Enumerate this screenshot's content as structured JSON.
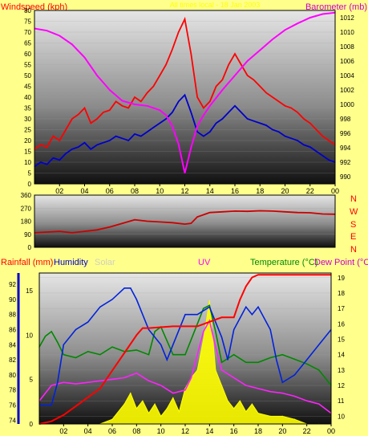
{
  "chart_data": [
    {
      "type": "line",
      "title": "",
      "ylabel_left": "Windspeed (kph)",
      "ylabel_right": "Barometer (mb)",
      "header_text": "All times local - 18 Jan 2003",
      "x_ticks": [
        "02",
        "04",
        "06",
        "08",
        "10",
        "12",
        "14",
        "16",
        "18",
        "20",
        "22",
        "00"
      ],
      "y_left_ticks": [
        0,
        5,
        10,
        15,
        20,
        25,
        30,
        35,
        40,
        45,
        50,
        55,
        60,
        65,
        70,
        75,
        80
      ],
      "y_right_ticks": [
        990,
        992,
        994,
        996,
        998,
        1000,
        1002,
        1004,
        1006,
        1008,
        1010,
        1012
      ],
      "ylim_left": [
        0,
        80
      ],
      "ylim_right": [
        989,
        1013
      ],
      "xlim": [
        0,
        24
      ],
      "series": [
        {
          "name": "Wind Gust",
          "axis": "left",
          "color": "#ff0000",
          "x": [
            0,
            0.5,
            1,
            1.5,
            2,
            2.5,
            3,
            3.5,
            4,
            4.5,
            5,
            5.5,
            6,
            6.5,
            7,
            7.5,
            8,
            8.5,
            9,
            9.5,
            10,
            10.5,
            11,
            11.5,
            12,
            12.5,
            13,
            13.5,
            14,
            14.5,
            15,
            15.5,
            16,
            16.5,
            17,
            17.5,
            18,
            18.5,
            19,
            19.5,
            20,
            20.5,
            21,
            21.5,
            22,
            22.5,
            23,
            23.5,
            24
          ],
          "y": [
            16,
            18,
            17,
            22,
            20,
            25,
            30,
            32,
            35,
            28,
            30,
            33,
            34,
            38,
            36,
            35,
            40,
            38,
            42,
            45,
            50,
            55,
            62,
            70,
            76,
            60,
            40,
            35,
            38,
            45,
            48,
            55,
            60,
            55,
            50,
            48,
            45,
            42,
            40,
            38,
            36,
            35,
            33,
            30,
            28,
            25,
            22,
            20,
            18
          ]
        },
        {
          "name": "Wind Speed",
          "axis": "left",
          "color": "#0000cc",
          "x": [
            0,
            0.5,
            1,
            1.5,
            2,
            2.5,
            3,
            3.5,
            4,
            4.5,
            5,
            5.5,
            6,
            6.5,
            7,
            7.5,
            8,
            8.5,
            9,
            9.5,
            10,
            10.5,
            11,
            11.5,
            12,
            12.5,
            13,
            13.5,
            14,
            14.5,
            15,
            15.5,
            16,
            16.5,
            17,
            17.5,
            18,
            18.5,
            19,
            19.5,
            20,
            20.5,
            21,
            21.5,
            22,
            22.5,
            23,
            23.5,
            24
          ],
          "y": [
            8,
            10,
            9,
            12,
            11,
            14,
            16,
            17,
            19,
            16,
            18,
            19,
            20,
            22,
            21,
            20,
            23,
            22,
            24,
            26,
            28,
            30,
            33,
            38,
            41,
            33,
            24,
            22,
            24,
            28,
            30,
            33,
            36,
            33,
            30,
            29,
            28,
            27,
            25,
            24,
            22,
            21,
            20,
            18,
            17,
            15,
            13,
            11,
            10
          ]
        },
        {
          "name": "Barometer",
          "axis": "right",
          "color": "#ff00ff",
          "x": [
            0,
            1,
            2,
            3,
            4,
            5,
            6,
            7,
            8,
            9,
            10,
            10.5,
            11,
            11.5,
            12,
            12.5,
            13,
            13.5,
            14,
            15,
            16,
            17,
            18,
            19,
            20,
            21,
            22,
            23,
            24
          ],
          "y": [
            1010.5,
            1010.2,
            1009.5,
            1008.3,
            1006.5,
            1004,
            1002,
            1000.5,
            1000,
            999.8,
            999.2,
            998.5,
            997,
            994.5,
            990.5,
            994,
            997,
            998.5,
            999.8,
            1002,
            1004,
            1006,
            1007.5,
            1009,
            1010.3,
            1011.2,
            1012,
            1012.5,
            1012.7
          ]
        }
      ]
    },
    {
      "type": "line",
      "title": "",
      "ylabel_right": [
        "N",
        "W",
        "S",
        "E",
        "N"
      ],
      "y_left_ticks": [
        0,
        90,
        180,
        270,
        360
      ],
      "ylim": [
        0,
        360
      ],
      "xlim": [
        0,
        24
      ],
      "series": [
        {
          "name": "Wind Direction",
          "color": "#cc0000",
          "x": [
            0,
            1,
            2,
            3,
            4,
            5,
            6,
            7,
            8,
            9,
            10,
            11,
            12,
            12.5,
            13,
            14,
            15,
            16,
            17,
            18,
            19,
            20,
            21,
            22,
            23,
            24
          ],
          "y": [
            100,
            105,
            110,
            100,
            110,
            120,
            140,
            165,
            190,
            180,
            175,
            170,
            160,
            165,
            210,
            240,
            245,
            250,
            248,
            252,
            250,
            245,
            240,
            238,
            230,
            228
          ]
        }
      ]
    },
    {
      "type": "line",
      "title": "",
      "labels": {
        "rainfall": "Rainfall (mm)",
        "humidity": "Humidity",
        "solar": "Solar",
        "uv": "UV",
        "temperature": "Temperature (°C)",
        "dewpoint": "Dew Point (°C)"
      },
      "x_ticks": [
        "02",
        "04",
        "06",
        "08",
        "10",
        "12",
        "14",
        "16",
        "18",
        "20",
        "22",
        "00"
      ],
      "y_rain_ticks": [
        0,
        5,
        10,
        15
      ],
      "y_hum_ticks": [
        74,
        76,
        78,
        80,
        82,
        84,
        86,
        88,
        90,
        92
      ],
      "y_temp_ticks": [
        10,
        11,
        12,
        13,
        14,
        15,
        16,
        17,
        18,
        19
      ],
      "ylim_rain": [
        0,
        17
      ],
      "ylim_hum": [
        73.5,
        93.5
      ],
      "ylim_temp": [
        9.5,
        19.3
      ],
      "xlim": [
        0,
        24
      ],
      "series": [
        {
          "name": "Rainfall",
          "axis": "rain",
          "color": "#ff0000",
          "x": [
            0,
            1,
            2,
            3,
            4,
            5,
            6,
            7,
            8,
            8.5,
            9,
            10,
            11,
            12,
            13,
            14,
            15,
            16,
            16.5,
            17,
            17.5,
            18,
            19,
            20,
            21,
            22,
            23,
            24
          ],
          "y": [
            0,
            0.3,
            1,
            2,
            3,
            4,
            6,
            8,
            10,
            10.8,
            10.8,
            10.9,
            11,
            11,
            11,
            11.5,
            12,
            12,
            14,
            15.5,
            16.5,
            16.8,
            16.8,
            16.8,
            16.8,
            16.8,
            16.8,
            16.8
          ]
        },
        {
          "name": "Humidity",
          "axis": "hum",
          "color": "#0022dd",
          "x": [
            0,
            1,
            1.5,
            2,
            3,
            4,
            5,
            6,
            7,
            7.5,
            8,
            9,
            10,
            10.5,
            11,
            12,
            12.5,
            13,
            14,
            15,
            15.5,
            16,
            17,
            17.5,
            18,
            19,
            19.5,
            20,
            21,
            22,
            23,
            24
          ],
          "y": [
            76,
            76,
            79,
            84,
            86,
            87,
            89,
            90,
            91.5,
            91.5,
            90,
            86,
            84,
            82,
            84,
            88,
            88,
            88,
            89,
            85,
            82,
            86,
            89,
            88,
            89,
            86,
            82,
            79,
            80,
            82,
            84,
            86
          ]
        },
        {
          "name": "Temperature",
          "axis": "temp",
          "color": "#008800",
          "x": [
            0,
            0.5,
            1,
            1.5,
            2,
            3,
            4,
            5,
            6,
            7,
            8,
            9,
            9.5,
            10,
            11,
            12,
            13,
            13.5,
            14,
            14.5,
            15,
            16,
            17,
            18,
            19,
            20,
            21,
            22,
            23,
            24
          ],
          "y": [
            14.5,
            15.2,
            15.5,
            14.8,
            14,
            13.8,
            14.2,
            14,
            14.5,
            14.2,
            14.3,
            14,
            15.5,
            15.8,
            14,
            14,
            16,
            17,
            17.2,
            15.5,
            13.5,
            14,
            13.5,
            13.5,
            13.8,
            14,
            13.7,
            13.4,
            13,
            12
          ]
        },
        {
          "name": "Dew Point",
          "axis": "temp",
          "color": "#ff22ff",
          "x": [
            0,
            0.5,
            1,
            2,
            3,
            4,
            5,
            6,
            7,
            8,
            9,
            10,
            11,
            12,
            12.5,
            13,
            13.5,
            14,
            14.5,
            15,
            16,
            17,
            18,
            19,
            20,
            21,
            22,
            23,
            24
          ],
          "y": [
            11,
            11.5,
            12,
            12.2,
            12.1,
            12.2,
            12.3,
            12.4,
            12.5,
            12.8,
            12.3,
            12,
            11.5,
            11.7,
            12.5,
            14,
            15.5,
            16.2,
            14.5,
            13,
            12.5,
            12,
            11.8,
            11.6,
            11.5,
            11.3,
            11,
            10.8,
            10.2
          ]
        },
        {
          "name": "Solar",
          "axis": "temp",
          "color": "#ffff00",
          "x": [
            0,
            5,
            6,
            7,
            7.5,
            8,
            8.5,
            9,
            9.5,
            10,
            10.5,
            11,
            11.5,
            12,
            12.5,
            13,
            13.5,
            14,
            14.5,
            15,
            15.5,
            16,
            16.5,
            17,
            17.5,
            18,
            19,
            20,
            21,
            22,
            23,
            24
          ],
          "y": [
            9.5,
            9.5,
            9.8,
            10.8,
            11.5,
            10.5,
            11,
            10.2,
            10.8,
            10,
            10.5,
            11.2,
            10.3,
            11.8,
            12.5,
            13,
            15,
            17.5,
            13,
            12,
            11,
            10.5,
            11,
            10.3,
            10.8,
            10.2,
            10,
            10,
            9.8,
            9.5,
            9.5,
            9.5
          ]
        }
      ]
    }
  ]
}
